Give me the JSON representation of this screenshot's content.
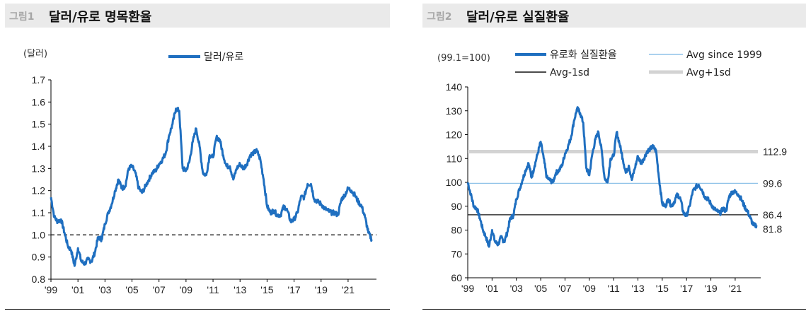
{
  "figures": [
    {
      "num": "그림1",
      "title": "달러/유로 명목환율",
      "unit": "(달러)"
    },
    {
      "num": "그림2",
      "title": "달러/유로 실질환율",
      "unit": "(99.1=100)"
    }
  ],
  "chart_data": [
    {
      "type": "line",
      "title": "달러/유로 명목환율",
      "unit_label": "(달러)",
      "ylim": [
        0.8,
        1.7
      ],
      "yticks": [
        "1.7",
        "1.6",
        "1.5",
        "1.4",
        "1.3",
        "1.2",
        "1.1",
        "1.0",
        "0.9",
        "0.8"
      ],
      "ytick_values": [
        1.7,
        1.6,
        1.5,
        1.4,
        1.3,
        1.2,
        1.1,
        1.0,
        0.9,
        0.8
      ],
      "xlim": [
        1999.0,
        2023.1
      ],
      "xticks": [
        "'99",
        "'01",
        "'03",
        "'05",
        "'07",
        "'09",
        "'11",
        "'13",
        "'15",
        "'17",
        "'19",
        "'21"
      ],
      "xtick_values": [
        1999,
        2001,
        2003,
        2005,
        2007,
        2009,
        2011,
        2013,
        2015,
        2017,
        2019,
        2021
      ],
      "grid": false,
      "legend_position": "top",
      "series": [
        {
          "name": "달러/유로",
          "color": "#1f6fc0",
          "x": [
            1999.0,
            1999.25,
            1999.5,
            1999.75,
            2000.0,
            2000.25,
            2000.5,
            2000.75,
            2001.0,
            2001.25,
            2001.5,
            2001.75,
            2002.0,
            2002.25,
            2002.5,
            2002.75,
            2003.0,
            2003.25,
            2003.5,
            2003.75,
            2004.0,
            2004.25,
            2004.5,
            2004.75,
            2005.0,
            2005.25,
            2005.5,
            2005.75,
            2006.0,
            2006.25,
            2006.5,
            2006.75,
            2007.0,
            2007.25,
            2007.5,
            2007.75,
            2008.0,
            2008.25,
            2008.5,
            2008.75,
            2009.0,
            2009.25,
            2009.5,
            2009.75,
            2010.0,
            2010.25,
            2010.5,
            2010.75,
            2011.0,
            2011.25,
            2011.5,
            2011.75,
            2012.0,
            2012.25,
            2012.5,
            2012.75,
            2013.0,
            2013.25,
            2013.5,
            2013.75,
            2014.0,
            2014.25,
            2014.5,
            2014.75,
            2015.0,
            2015.25,
            2015.5,
            2015.75,
            2016.0,
            2016.25,
            2016.5,
            2016.75,
            2017.0,
            2017.25,
            2017.5,
            2017.75,
            2018.0,
            2018.25,
            2018.5,
            2018.75,
            2019.0,
            2019.25,
            2019.5,
            2019.75,
            2020.0,
            2020.25,
            2020.5,
            2020.75,
            2021.0,
            2021.25,
            2021.5,
            2021.75,
            2022.0,
            2022.25,
            2022.5,
            2022.75
          ],
          "values": [
            1.17,
            1.08,
            1.06,
            1.07,
            1.01,
            0.95,
            0.93,
            0.86,
            0.94,
            0.88,
            0.87,
            0.89,
            0.88,
            0.92,
            0.99,
            0.98,
            1.05,
            1.1,
            1.14,
            1.2,
            1.25,
            1.21,
            1.22,
            1.3,
            1.31,
            1.28,
            1.21,
            1.19,
            1.22,
            1.25,
            1.28,
            1.29,
            1.32,
            1.34,
            1.37,
            1.45,
            1.5,
            1.57,
            1.56,
            1.3,
            1.29,
            1.33,
            1.42,
            1.48,
            1.4,
            1.28,
            1.27,
            1.36,
            1.35,
            1.44,
            1.43,
            1.36,
            1.31,
            1.31,
            1.25,
            1.3,
            1.32,
            1.3,
            1.32,
            1.36,
            1.37,
            1.38,
            1.34,
            1.25,
            1.13,
            1.1,
            1.11,
            1.09,
            1.09,
            1.13,
            1.11,
            1.06,
            1.07,
            1.1,
            1.17,
            1.17,
            1.23,
            1.23,
            1.16,
            1.15,
            1.14,
            1.12,
            1.11,
            1.1,
            1.1,
            1.09,
            1.16,
            1.18,
            1.21,
            1.2,
            1.18,
            1.15,
            1.13,
            1.08,
            1.01,
            0.98
          ]
        }
      ],
      "reference_lines": [
        {
          "y": 1.0,
          "style": "dashed",
          "color": "#111111"
        }
      ]
    },
    {
      "type": "line",
      "title": "달러/유로 실질환율",
      "unit_label": "(99.1=100)",
      "ylim": [
        60,
        140
      ],
      "yticks": [
        "140",
        "130",
        "120",
        "110",
        "100",
        "90",
        "80",
        "70",
        "60"
      ],
      "ytick_values": [
        140,
        130,
        120,
        110,
        100,
        90,
        80,
        70,
        60
      ],
      "xlim": [
        1999.0,
        2023.1
      ],
      "xticks": [
        "'99",
        "'01",
        "'03",
        "'05",
        "'07",
        "'09",
        "'11",
        "'13",
        "'15",
        "'17",
        "'19",
        "'21"
      ],
      "xtick_values": [
        1999,
        2001,
        2003,
        2005,
        2007,
        2009,
        2011,
        2013,
        2015,
        2017,
        2019,
        2021
      ],
      "grid": false,
      "legend_position": "top",
      "series": [
        {
          "name": "유로화 실질환율",
          "color": "#1f6fc0",
          "x": [
            1999.0,
            1999.25,
            1999.5,
            1999.75,
            2000.0,
            2000.25,
            2000.5,
            2000.75,
            2001.0,
            2001.25,
            2001.5,
            2001.75,
            2002.0,
            2002.25,
            2002.5,
            2002.75,
            2003.0,
            2003.25,
            2003.5,
            2003.75,
            2004.0,
            2004.25,
            2004.5,
            2004.75,
            2005.0,
            2005.25,
            2005.5,
            2005.75,
            2006.0,
            2006.25,
            2006.5,
            2006.75,
            2007.0,
            2007.25,
            2007.5,
            2007.75,
            2008.0,
            2008.25,
            2008.5,
            2008.75,
            2009.0,
            2009.25,
            2009.5,
            2009.75,
            2010.0,
            2010.25,
            2010.5,
            2010.75,
            2011.0,
            2011.25,
            2011.5,
            2011.75,
            2012.0,
            2012.25,
            2012.5,
            2012.75,
            2013.0,
            2013.25,
            2013.5,
            2013.75,
            2014.0,
            2014.25,
            2014.5,
            2014.75,
            2015.0,
            2015.25,
            2015.5,
            2015.75,
            2016.0,
            2016.25,
            2016.5,
            2016.75,
            2017.0,
            2017.25,
            2017.5,
            2017.75,
            2018.0,
            2018.25,
            2018.5,
            2018.75,
            2019.0,
            2019.25,
            2019.5,
            2019.75,
            2020.0,
            2020.25,
            2020.5,
            2020.75,
            2021.0,
            2021.25,
            2021.5,
            2021.75,
            2022.0,
            2022.25,
            2022.5,
            2022.75
          ],
          "values": [
            100,
            95,
            90,
            89,
            85,
            80,
            77,
            73,
            80,
            75,
            74,
            77,
            75,
            79,
            85,
            86,
            93,
            97,
            101,
            105,
            108,
            102,
            107,
            112,
            117,
            110,
            102,
            101,
            100,
            104,
            105,
            107,
            112,
            115,
            119,
            126,
            131,
            129,
            125,
            106,
            103,
            112,
            118,
            121,
            114,
            102,
            100,
            110,
            111,
            121,
            116,
            110,
            104,
            107,
            101,
            106,
            111,
            108,
            110,
            113,
            114,
            115,
            113,
            101,
            91,
            90,
            93,
            90,
            92,
            95,
            93,
            87,
            86,
            90,
            96,
            98,
            99,
            97,
            94,
            93,
            91,
            89,
            88,
            87,
            89,
            88,
            94,
            96,
            96,
            95,
            93,
            90,
            88,
            85,
            82,
            82
          ]
        }
      ],
      "reference_lines": [
        {
          "label": "Avg since 1999",
          "y": 99.6,
          "value_label": "99.6",
          "color": "#8fc2e8",
          "width": 1.2
        },
        {
          "label": "Avg-1sd",
          "y": 86.4,
          "value_label": "86.4",
          "color": "#111111",
          "width": 1.3
        },
        {
          "label": "Avg+1sd",
          "y": 112.9,
          "value_label": "112.9",
          "color": "#d3d3d3",
          "width": 5
        }
      ],
      "end_value_label": "81.8"
    }
  ]
}
